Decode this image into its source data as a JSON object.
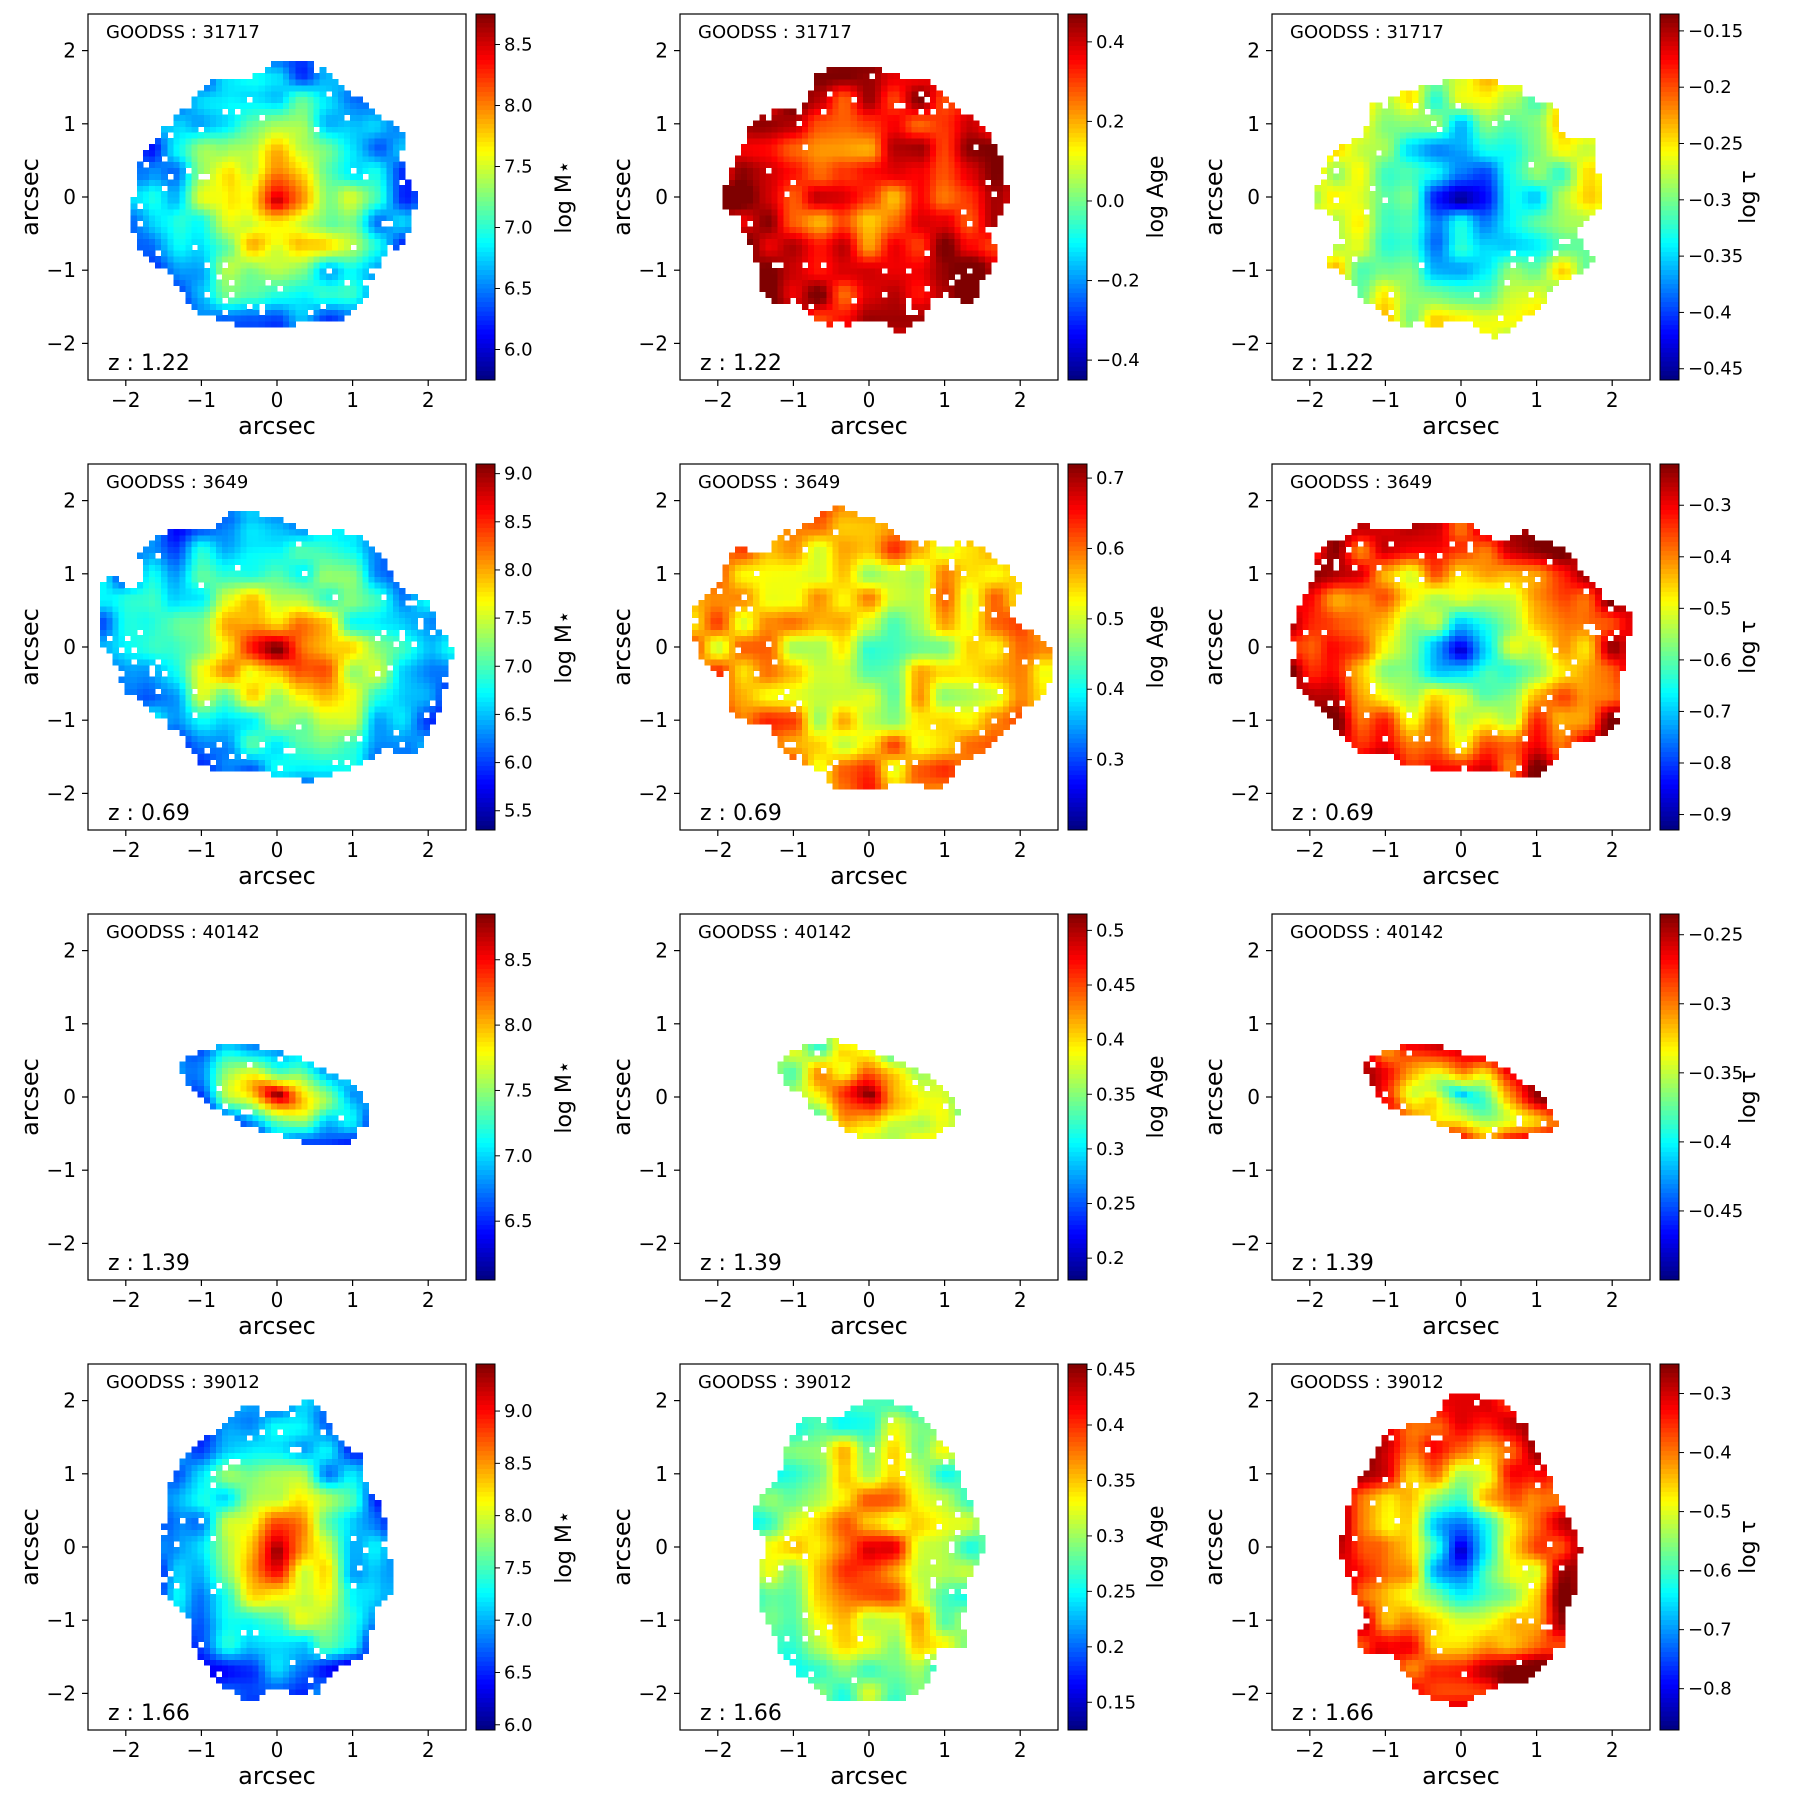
{
  "figure": {
    "axis_label": "arcsec",
    "colormap": "jet",
    "colormap_stops": [
      "#00007f",
      "#0000ff",
      "#007fff",
      "#00ffff",
      "#7fff7f",
      "#ffff00",
      "#ff7f00",
      "#ff0000",
      "#7f0000"
    ]
  },
  "chart_data": [
    {
      "type": "heatmap",
      "galaxy": "GOODSS : 31717",
      "redshift": "z : 1.22",
      "quantity": "mass",
      "colorbar_label": "log M⋆",
      "clim": [
        5.75,
        8.75
      ],
      "colorbar_ticks": [
        6.0,
        6.5,
        7.0,
        7.5,
        8.0,
        8.5
      ],
      "xlabel": "arcsec",
      "ylabel": "arcsec",
      "xlim": [
        -2.5,
        2.5
      ],
      "ylim": [
        -2.5,
        2.5
      ],
      "ticks": [
        -2,
        -1,
        0,
        1,
        2
      ],
      "extent": {
        "rx": 1.75,
        "ry": 1.8,
        "tilt_deg": -40,
        "center": [
          0.0,
          -0.05
        ]
      },
      "center_value": 8.7,
      "edge_value": 6.5
    },
    {
      "type": "heatmap",
      "galaxy": "GOODSS : 31717",
      "redshift": "z : 1.22",
      "quantity": "age",
      "colorbar_label": "log Age",
      "clim": [
        -0.45,
        0.47
      ],
      "colorbar_ticks": [
        -0.4,
        -0.2,
        0.0,
        0.2,
        0.4
      ],
      "xlabel": "arcsec",
      "ylabel": "arcsec",
      "xlim": [
        -2.5,
        2.5
      ],
      "ylim": [
        -2.5,
        2.5
      ],
      "ticks": [
        -2,
        -1,
        0,
        1,
        2
      ],
      "extent": {
        "rx": 1.75,
        "ry": 1.8,
        "tilt_deg": -40,
        "center": [
          0.0,
          -0.05
        ]
      },
      "center_value": 0.2,
      "edge_value": 0.42
    },
    {
      "type": "heatmap",
      "galaxy": "GOODSS : 31717",
      "redshift": "z : 1.22",
      "quantity": "tau",
      "colorbar_label": "log τ",
      "clim": [
        -0.46,
        -0.135
      ],
      "colorbar_ticks": [
        -0.45,
        -0.4,
        -0.35,
        -0.3,
        -0.25,
        -0.2,
        -0.15
      ],
      "xlabel": "arcsec",
      "ylabel": "arcsec",
      "xlim": [
        -2.5,
        2.5
      ],
      "ylim": [
        -2.5,
        2.5
      ],
      "ticks": [
        -2,
        -1,
        0,
        1,
        2
      ],
      "extent": {
        "rx": 1.75,
        "ry": 1.8,
        "tilt_deg": -40,
        "center": [
          0.0,
          -0.05
        ]
      },
      "center_value": -0.42,
      "edge_value": -0.27
    },
    {
      "type": "heatmap",
      "galaxy": "GOODSS : 3649",
      "redshift": "z : 0.69",
      "quantity": "mass",
      "colorbar_label": "log M⋆",
      "clim": [
        5.3,
        9.1
      ],
      "colorbar_ticks": [
        5.5,
        6.0,
        6.5,
        7.0,
        7.5,
        8.0,
        8.5,
        9.0
      ],
      "xlabel": "arcsec",
      "ylabel": "arcsec",
      "xlim": [
        -2.5,
        2.5
      ],
      "ylim": [
        -2.5,
        2.5
      ],
      "ticks": [
        -2,
        -1,
        0,
        1,
        2
      ],
      "extent": {
        "rx": 2.3,
        "ry": 1.75,
        "tilt_deg": -15,
        "center": [
          0.0,
          -0.05
        ]
      },
      "center_value": 9.0,
      "edge_value": 6.3
    },
    {
      "type": "heatmap",
      "galaxy": "GOODSS : 3649",
      "redshift": "z : 0.69",
      "quantity": "age",
      "colorbar_label": "log Age",
      "clim": [
        0.2,
        0.72
      ],
      "colorbar_ticks": [
        0.3,
        0.4,
        0.5,
        0.6,
        0.7
      ],
      "xlabel": "arcsec",
      "ylabel": "arcsec",
      "xlim": [
        -2.5,
        2.5
      ],
      "ylim": [
        -2.5,
        2.5
      ],
      "ticks": [
        -2,
        -1,
        0,
        1,
        2
      ],
      "extent": {
        "rx": 2.3,
        "ry": 1.75,
        "tilt_deg": -15,
        "center": [
          0.0,
          -0.05
        ]
      },
      "center_value": 0.45,
      "edge_value": 0.58
    },
    {
      "type": "heatmap",
      "galaxy": "GOODSS : 3649",
      "redshift": "z : 0.69",
      "quantity": "tau",
      "colorbar_label": "log τ",
      "clim": [
        -0.93,
        -0.22
      ],
      "colorbar_ticks": [
        -0.9,
        -0.8,
        -0.7,
        -0.6,
        -0.5,
        -0.4,
        -0.3
      ],
      "xlabel": "arcsec",
      "ylabel": "arcsec",
      "xlim": [
        -2.5,
        2.5
      ],
      "ylim": [
        -2.5,
        2.5
      ],
      "ticks": [
        -2,
        -1,
        0,
        1,
        2
      ],
      "extent": {
        "rx": 2.3,
        "ry": 1.75,
        "tilt_deg": -15,
        "center": [
          0.0,
          -0.05
        ]
      },
      "center_value": -0.82,
      "edge_value": -0.28
    },
    {
      "type": "heatmap",
      "galaxy": "GOODSS : 40142",
      "redshift": "z : 1.39",
      "quantity": "mass",
      "colorbar_label": "log M⋆",
      "clim": [
        6.05,
        8.85
      ],
      "colorbar_ticks": [
        6.5,
        7.0,
        7.5,
        8.0,
        8.5
      ],
      "xlabel": "arcsec",
      "ylabel": "arcsec",
      "xlim": [
        -2.5,
        2.5
      ],
      "ylim": [
        -2.5,
        2.5
      ],
      "ticks": [
        -2,
        -1,
        0,
        1,
        2
      ],
      "extent": {
        "rx": 1.25,
        "ry": 0.55,
        "tilt_deg": -20,
        "center": [
          0.0,
          0.05
        ]
      },
      "center_value": 8.7,
      "edge_value": 6.8
    },
    {
      "type": "heatmap",
      "galaxy": "GOODSS : 40142",
      "redshift": "z : 1.39",
      "quantity": "age",
      "colorbar_label": "log Age",
      "clim": [
        0.18,
        0.515
      ],
      "colorbar_ticks": [
        0.2,
        0.25,
        0.3,
        0.35,
        0.4,
        0.45,
        0.5
      ],
      "xlabel": "arcsec",
      "ylabel": "arcsec",
      "xlim": [
        -2.5,
        2.5
      ],
      "ylim": [
        -2.5,
        2.5
      ],
      "ticks": [
        -2,
        -1,
        0,
        1,
        2
      ],
      "extent": {
        "rx": 1.25,
        "ry": 0.55,
        "tilt_deg": -20,
        "center": [
          0.0,
          0.05
        ]
      },
      "center_value": 0.5,
      "edge_value": 0.36
    },
    {
      "type": "heatmap",
      "galaxy": "GOODSS : 40142",
      "redshift": "z : 1.39",
      "quantity": "tau",
      "colorbar_label": "log τ",
      "clim": [
        -0.5,
        -0.235
      ],
      "colorbar_ticks": [
        -0.45,
        -0.4,
        -0.35,
        -0.3,
        -0.25
      ],
      "xlabel": "arcsec",
      "ylabel": "arcsec",
      "xlim": [
        -2.5,
        2.5
      ],
      "ylim": [
        -2.5,
        2.5
      ],
      "ticks": [
        -2,
        -1,
        0,
        1,
        2
      ],
      "extent": {
        "rx": 1.25,
        "ry": 0.55,
        "tilt_deg": -20,
        "center": [
          0.0,
          0.05
        ]
      },
      "center_value": -0.45,
      "edge_value": -0.27
    },
    {
      "type": "heatmap",
      "galaxy": "GOODSS : 39012",
      "redshift": "z : 1.66",
      "quantity": "mass",
      "colorbar_label": "log M⋆",
      "clim": [
        5.95,
        9.45
      ],
      "colorbar_ticks": [
        6.0,
        6.5,
        7.0,
        7.5,
        8.0,
        8.5,
        9.0
      ],
      "xlabel": "arcsec",
      "ylabel": "arcsec",
      "xlim": [
        -2.5,
        2.5
      ],
      "ylim": [
        -2.5,
        2.5
      ],
      "ticks": [
        -2,
        -1,
        0,
        1,
        2
      ],
      "extent": {
        "rx": 1.5,
        "ry": 2.0,
        "tilt_deg": 0,
        "center": [
          0.0,
          -0.05
        ]
      },
      "center_value": 9.3,
      "edge_value": 6.7
    },
    {
      "type": "heatmap",
      "galaxy": "GOODSS : 39012",
      "redshift": "z : 1.66",
      "quantity": "age",
      "colorbar_label": "log Age",
      "clim": [
        0.125,
        0.455
      ],
      "colorbar_ticks": [
        0.15,
        0.2,
        0.25,
        0.3,
        0.35,
        0.4,
        0.45
      ],
      "xlabel": "arcsec",
      "ylabel": "arcsec",
      "xlim": [
        -2.5,
        2.5
      ],
      "ylim": [
        -2.5,
        2.5
      ],
      "ticks": [
        -2,
        -1,
        0,
        1,
        2
      ],
      "extent": {
        "rx": 1.5,
        "ry": 2.0,
        "tilt_deg": 0,
        "center": [
          0.0,
          -0.05
        ]
      },
      "center_value": 0.43,
      "edge_value": 0.28
    },
    {
      "type": "heatmap",
      "galaxy": "GOODSS : 39012",
      "redshift": "z : 1.66",
      "quantity": "tau",
      "colorbar_label": "log τ",
      "clim": [
        -0.87,
        -0.25
      ],
      "colorbar_ticks": [
        -0.8,
        -0.7,
        -0.6,
        -0.5,
        -0.4,
        -0.3
      ],
      "xlabel": "arcsec",
      "ylabel": "arcsec",
      "xlim": [
        -2.5,
        2.5
      ],
      "ylim": [
        -2.5,
        2.5
      ],
      "ticks": [
        -2,
        -1,
        0,
        1,
        2
      ],
      "extent": {
        "rx": 1.5,
        "ry": 2.0,
        "tilt_deg": 0,
        "center": [
          0.0,
          -0.05
        ]
      },
      "center_value": -0.8,
      "edge_value": -0.3
    }
  ]
}
